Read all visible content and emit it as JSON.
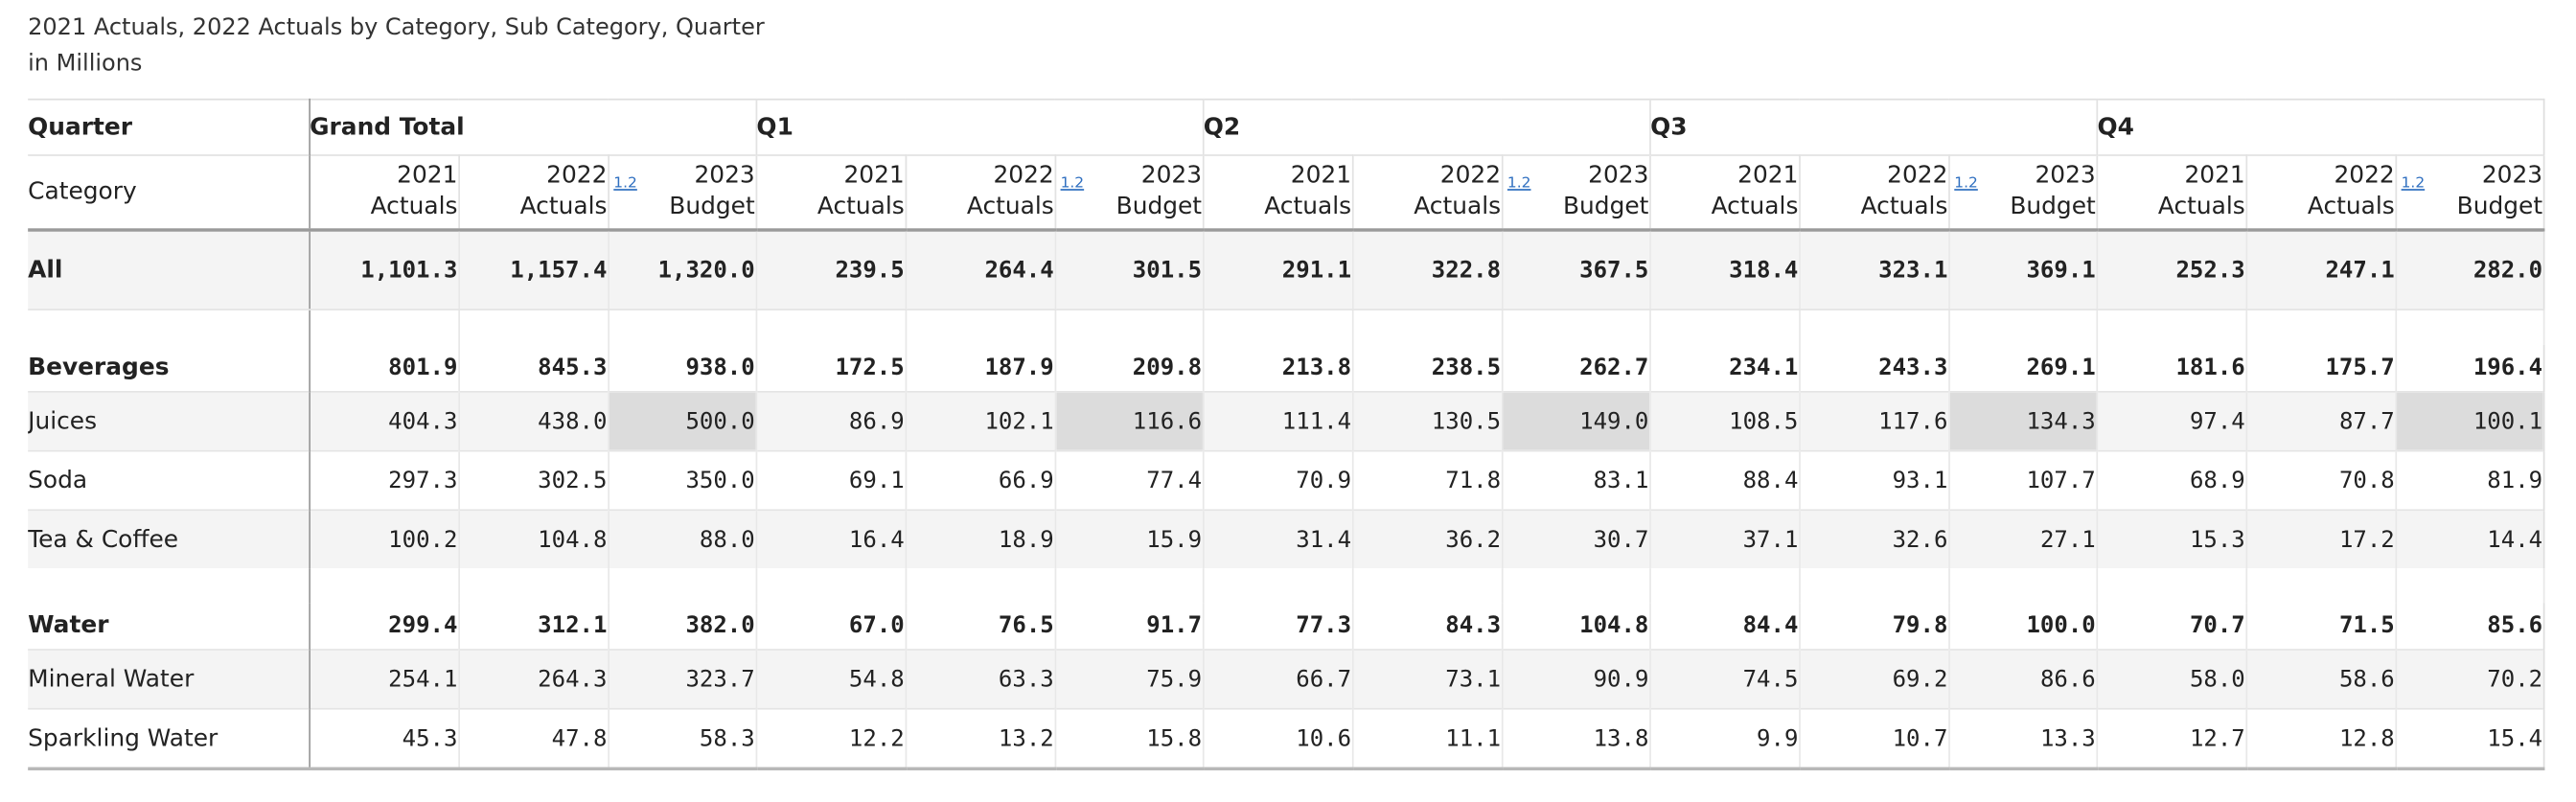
{
  "title": "2021 Actuals, 2022 Actuals by Category, Sub Category, Quarter",
  "subtitle": "in Millions",
  "column_header_label": "Quarter",
  "row_header_label": "Category",
  "version_badge": "1.2",
  "measures": [
    {
      "line1": "2021",
      "line2": "Actuals"
    },
    {
      "line1": "2022",
      "line2": "Actuals"
    },
    {
      "line1": "2023",
      "line2": "Budget"
    }
  ],
  "groups": [
    "Grand Total",
    "Q1",
    "Q2",
    "Q3",
    "Q4"
  ],
  "rows": [
    {
      "label": "All",
      "level": 1,
      "bold": true,
      "shaded": true,
      "kind": "all",
      "values": [
        "1,101.3",
        "1,157.4",
        "1,320.0",
        "239.5",
        "264.4",
        "301.5",
        "291.1",
        "322.8",
        "367.5",
        "318.4",
        "323.1",
        "369.1",
        "252.3",
        "247.1",
        "282.0"
      ]
    },
    {
      "label": "Beverages",
      "level": 1,
      "bold": true,
      "shaded": false,
      "kind": "grp",
      "values": [
        "801.9",
        "845.3",
        "938.0",
        "172.5",
        "187.9",
        "209.8",
        "213.8",
        "238.5",
        "262.7",
        "234.1",
        "243.3",
        "269.1",
        "181.6",
        "175.7",
        "196.4"
      ]
    },
    {
      "label": "Juices",
      "level": 2,
      "bold": false,
      "shaded": true,
      "kind": "leaf",
      "highlight_budget": true,
      "values": [
        "404.3",
        "438.0",
        "500.0",
        "86.9",
        "102.1",
        "116.6",
        "111.4",
        "130.5",
        "149.0",
        "108.5",
        "117.6",
        "134.3",
        "97.4",
        "87.7",
        "100.1"
      ]
    },
    {
      "label": "Soda",
      "level": 2,
      "bold": false,
      "shaded": false,
      "kind": "leaf",
      "values": [
        "297.3",
        "302.5",
        "350.0",
        "69.1",
        "66.9",
        "77.4",
        "70.9",
        "71.8",
        "83.1",
        "88.4",
        "93.1",
        "107.7",
        "68.9",
        "70.8",
        "81.9"
      ]
    },
    {
      "label": "Tea & Coffee",
      "level": 2,
      "bold": false,
      "shaded": true,
      "kind": "leaf",
      "values": [
        "100.2",
        "104.8",
        "88.0",
        "16.4",
        "18.9",
        "15.9",
        "31.4",
        "36.2",
        "30.7",
        "37.1",
        "32.6",
        "27.1",
        "15.3",
        "17.2",
        "14.4"
      ]
    },
    {
      "label": "Water",
      "level": 1,
      "bold": true,
      "shaded": false,
      "kind": "grp",
      "values": [
        "299.4",
        "312.1",
        "382.0",
        "67.0",
        "76.5",
        "91.7",
        "77.3",
        "84.3",
        "104.8",
        "84.4",
        "79.8",
        "100.0",
        "70.7",
        "71.5",
        "85.6"
      ]
    },
    {
      "label": "Mineral Water",
      "level": 2,
      "bold": false,
      "shaded": true,
      "kind": "leaf",
      "values": [
        "254.1",
        "264.3",
        "323.7",
        "54.8",
        "63.3",
        "75.9",
        "66.7",
        "73.1",
        "90.9",
        "74.5",
        "69.2",
        "86.6",
        "58.0",
        "58.6",
        "70.2"
      ]
    },
    {
      "label": "Sparkling Water",
      "level": 2,
      "bold": false,
      "shaded": false,
      "kind": "leaf",
      "last": true,
      "values": [
        "45.3",
        "47.8",
        "58.3",
        "12.2",
        "13.2",
        "15.8",
        "10.6",
        "11.1",
        "13.8",
        "9.9",
        "10.7",
        "13.3",
        "12.7",
        "12.8",
        "15.4"
      ]
    }
  ]
}
